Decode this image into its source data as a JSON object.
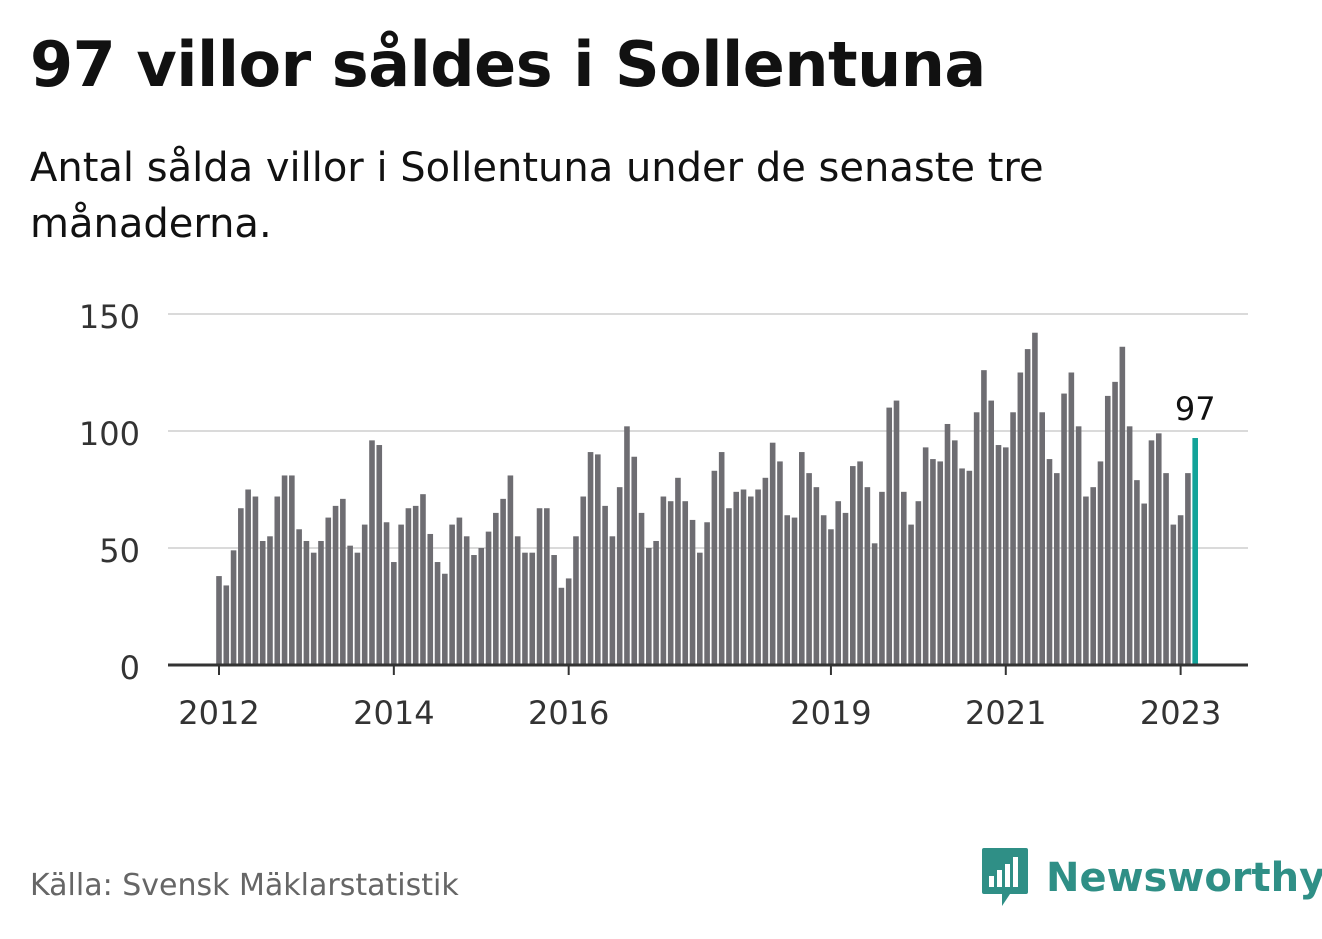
{
  "title": "97 villor såldes i Sollentuna",
  "subtitle": "Antal sålda villor i Sollentuna under de senaste tre månaderna.",
  "source": "Källa: Svensk Mäklarstatistik",
  "brand": {
    "name": "Newsworthy",
    "icon": "newsworthy-logo-icon",
    "color": "#2f8f86"
  },
  "colors": {
    "bar": "#6e6d72",
    "highlight": "#13a399",
    "grid": "#dadada",
    "axis": "#333333",
    "text": "#111111",
    "muted": "#666666"
  },
  "chart_data": {
    "type": "bar",
    "title": "97 villor såldes i Sollentuna",
    "xlabel": "",
    "ylabel": "",
    "ylim": [
      0,
      150
    ],
    "yticks": [
      0,
      50,
      100,
      150
    ],
    "grid": true,
    "start": "2012-01",
    "interval": "month",
    "xtick_labels": [
      {
        "label": "2012",
        "index": 0
      },
      {
        "label": "2014",
        "index": 24
      },
      {
        "label": "2016",
        "index": 48
      },
      {
        "label": "2019",
        "index": 84
      },
      {
        "label": "2021",
        "index": 108
      },
      {
        "label": "2023",
        "index": 132
      }
    ],
    "highlight_index": 134,
    "highlight_label": "97",
    "values": [
      38,
      34,
      49,
      67,
      75,
      72,
      53,
      55,
      72,
      81,
      81,
      58,
      53,
      48,
      53,
      63,
      68,
      71,
      51,
      48,
      60,
      96,
      94,
      61,
      44,
      60,
      67,
      68,
      73,
      56,
      44,
      39,
      60,
      63,
      55,
      47,
      50,
      57,
      65,
      71,
      81,
      55,
      48,
      48,
      67,
      67,
      47,
      33,
      37,
      55,
      72,
      91,
      90,
      68,
      55,
      76,
      102,
      89,
      65,
      50,
      53,
      72,
      70,
      80,
      70,
      62,
      48,
      61,
      83,
      91,
      67,
      74,
      75,
      72,
      75,
      80,
      95,
      87,
      64,
      63,
      91,
      82,
      76,
      64,
      58,
      70,
      65,
      85,
      87,
      76,
      52,
      74,
      110,
      113,
      74,
      60,
      70,
      93,
      88,
      87,
      103,
      96,
      84,
      83,
      108,
      126,
      113,
      94,
      93,
      108,
      125,
      135,
      142,
      108,
      88,
      82,
      116,
      125,
      102,
      72,
      76,
      87,
      115,
      121,
      136,
      102,
      79,
      69,
      96,
      99,
      82,
      60,
      64,
      82,
      97
    ]
  }
}
